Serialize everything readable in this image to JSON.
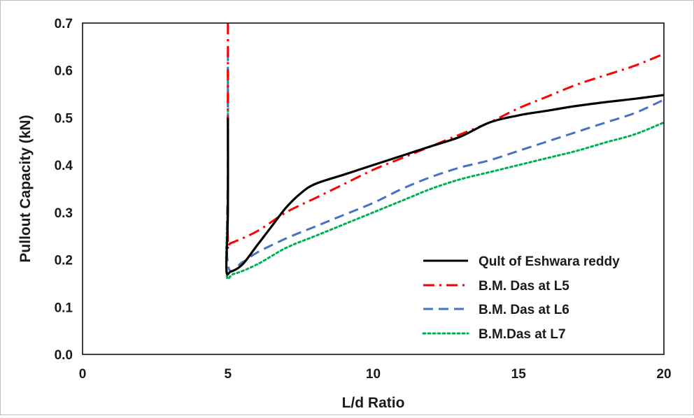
{
  "chart_data": {
    "type": "line",
    "title": "",
    "xlabel": "L/d Ratio",
    "ylabel": "Pullout Capacity (kN)",
    "xlim": [
      0,
      20
    ],
    "ylim": [
      0,
      0.7
    ],
    "xticks": [
      "0",
      "5",
      "10",
      "15",
      "20"
    ],
    "yticks": [
      "0.0",
      "0.1",
      "0.2",
      "0.3",
      "0.4",
      "0.5",
      "0.6",
      "0.7"
    ],
    "legend_position": "bottom-right",
    "series": [
      {
        "name": "Qult of Eshwara reddy",
        "color": "#000000",
        "style": "solid",
        "x": [
          5.0,
          5.0,
          4.95,
          5.1,
          5.5,
          6.0,
          6.5,
          7.0,
          7.5,
          8.0,
          9.0,
          10.0,
          11.0,
          12.0,
          13.0,
          14.0,
          15.0,
          16.0,
          17.0,
          18.0,
          19.0,
          20.0
        ],
        "y": [
          0.5,
          0.3,
          0.18,
          0.175,
          0.19,
          0.23,
          0.27,
          0.31,
          0.34,
          0.36,
          0.38,
          0.4,
          0.42,
          0.44,
          0.46,
          0.49,
          0.505,
          0.515,
          0.525,
          0.533,
          0.54,
          0.548
        ]
      },
      {
        "name": "B.M. Das at L5",
        "color": "#ff0000",
        "style": "dash-dot",
        "x": [
          5.0,
          5.0,
          5.0,
          5.1,
          6.0,
          7.0,
          8.0,
          9.0,
          10.0,
          11.0,
          12.0,
          13.0,
          14.0,
          15.0,
          16.0,
          17.0,
          18.0,
          19.0,
          20.0
        ],
        "y": [
          0.7,
          0.4,
          0.235,
          0.235,
          0.26,
          0.3,
          0.33,
          0.36,
          0.39,
          0.415,
          0.44,
          0.465,
          0.49,
          0.52,
          0.545,
          0.57,
          0.59,
          0.61,
          0.635
        ]
      },
      {
        "name": "B.M. Das at L6",
        "color": "#4472c4",
        "style": "dash",
        "x": [
          5.0,
          5.0,
          5.0,
          5.5,
          6.0,
          7.0,
          8.0,
          9.0,
          10.0,
          11.0,
          12.0,
          13.0,
          14.0,
          15.0,
          16.0,
          17.0,
          18.0,
          19.0,
          20.0
        ],
        "y": [
          0.64,
          0.4,
          0.19,
          0.195,
          0.215,
          0.245,
          0.27,
          0.295,
          0.32,
          0.35,
          0.375,
          0.395,
          0.41,
          0.43,
          0.45,
          0.47,
          0.49,
          0.51,
          0.538
        ]
      },
      {
        "name": "B.M.Das at L7",
        "color": "#00b050",
        "style": "dot",
        "x": [
          5.0,
          5.0,
          4.95,
          5.2,
          6.0,
          7.0,
          8.0,
          9.0,
          10.0,
          11.0,
          12.0,
          13.0,
          14.0,
          15.0,
          16.0,
          17.0,
          18.0,
          19.0,
          20.0
        ],
        "y": [
          0.6,
          0.35,
          0.175,
          0.17,
          0.19,
          0.225,
          0.25,
          0.275,
          0.3,
          0.325,
          0.35,
          0.37,
          0.385,
          0.4,
          0.415,
          0.43,
          0.448,
          0.465,
          0.49
        ]
      }
    ]
  }
}
